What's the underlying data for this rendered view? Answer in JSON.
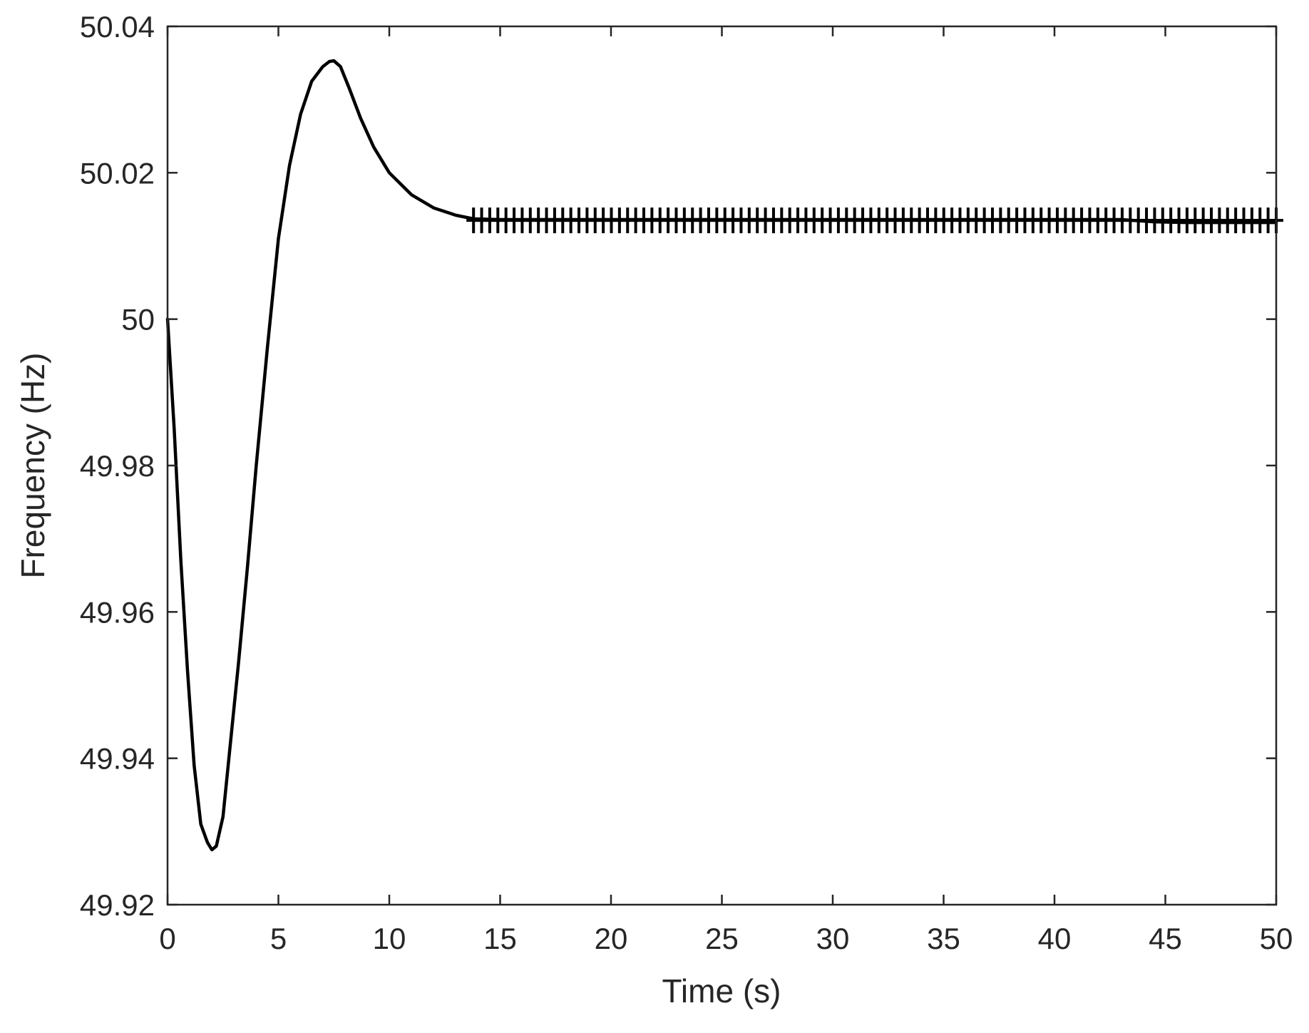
{
  "chart_data": {
    "type": "line",
    "title": "",
    "xlabel": "Time (s)",
    "ylabel": "Frequency (Hz)",
    "xlim": [
      0,
      50
    ],
    "ylim": [
      49.92,
      50.04
    ],
    "xticks": [
      0,
      5,
      10,
      15,
      20,
      25,
      30,
      35,
      40,
      45,
      50
    ],
    "yticks": [
      49.92,
      49.94,
      49.96,
      49.98,
      50,
      50.02,
      50.04
    ],
    "xtick_labels": [
      "0",
      "5",
      "10",
      "15",
      "20",
      "25",
      "30",
      "35",
      "40",
      "45",
      "50"
    ],
    "ytick_labels": [
      "49.92",
      "49.94",
      "49.96",
      "49.98",
      "50",
      "50.02",
      "50.04"
    ],
    "grid": false,
    "legend": "none",
    "line_color": "#000000",
    "series": [
      {
        "x": [
          0,
          0.3,
          0.6,
          0.9,
          1.2,
          1.5,
          1.8,
          2.0,
          2.2,
          2.5,
          2.8,
          3.2,
          3.6,
          4.0,
          4.5,
          5.0,
          5.5,
          6.0,
          6.5,
          7.0,
          7.3,
          7.5,
          7.8,
          8.2,
          8.7,
          9.3,
          10.0,
          11.0,
          12.0,
          13.0,
          13.8,
          15,
          20,
          25,
          30,
          35,
          40,
          43,
          44.5,
          46,
          48,
          50
        ],
        "y": [
          50.0,
          49.985,
          49.967,
          49.952,
          49.939,
          49.931,
          49.9285,
          49.9275,
          49.928,
          49.932,
          49.941,
          49.953,
          49.966,
          49.98,
          49.996,
          50.011,
          50.021,
          50.028,
          50.0325,
          50.0345,
          50.0352,
          50.0353,
          50.0345,
          50.0315,
          50.0275,
          50.0235,
          50.02,
          50.017,
          50.0152,
          50.0142,
          50.0137,
          50.0136,
          50.0136,
          50.0136,
          50.0136,
          50.0136,
          50.0136,
          50.0136,
          50.0133,
          50.0132,
          50.0132,
          50.0132
        ]
      }
    ],
    "markers": {
      "symbol": "+",
      "y": 50.0135,
      "x_start": 13.8,
      "x_end": 50,
      "count": 100
    }
  }
}
